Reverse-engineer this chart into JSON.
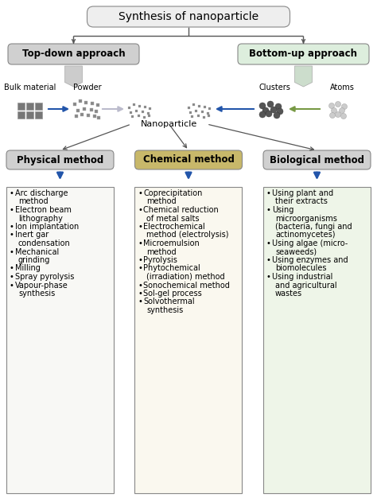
{
  "title": "Synthesis of nanoparticle",
  "top_down": "Top-down approach",
  "bottom_up": "Bottom-up approach",
  "nanoparticle_label": "Nanoparticle",
  "physical_method": "Physical method",
  "chemical_method": "Chemical method",
  "biological_method": "Biological method",
  "physical_items": [
    "Arc discharge\nmethod",
    "Electron beam\nlithography",
    "Ion implantation",
    "Inert gar\ncondensation",
    "Mechanical\ngrinding",
    "Milling",
    "Spray pyrolysis",
    "Vapour-phase\nsynthesis"
  ],
  "chemical_items": [
    "Coprecipitation\nmethod",
    "Chemical reduction\nof metal salts",
    "Electrochemical\nmethod (electrolysis)",
    "Microemulsion\nmethod",
    "Pyrolysis",
    "Phytochemical\n(irradiation) method",
    "Sonochemical method",
    "Sol-gel process",
    "Solvothermal\nsynthesis"
  ],
  "biological_items": [
    "Using plant and\ntheir extracts",
    "Using\nmicroorganisms\n(bacteria, fungi and\nactinomycetes)",
    "Using algae (micro-\nseaweeds)",
    "Using enzymes and\nbiomolecules",
    "Using industrial\nand agricultural\nwastes"
  ],
  "bulk_label": "Bulk material",
  "powder_label": "Powder",
  "clusters_label": "Clusters",
  "atoms_label": "Atoms",
  "bg_color": "#ffffff",
  "title_box_color": "#eeeeee",
  "title_box_edge": "#888888",
  "top_down_color": "#d0d0d0",
  "top_down_edge": "#888888",
  "bottom_up_color": "#ddeedd",
  "bottom_up_edge": "#888888",
  "physical_header_color": "#d0d0d0",
  "physical_header_edge": "#888888",
  "chemical_header_color": "#c8b86a",
  "chemical_header_edge": "#888888",
  "biological_header_color": "#d0d0d0",
  "biological_header_edge": "#888888",
  "physical_box_color": "#f8f8f5",
  "chemical_box_color": "#faf8ef",
  "biological_box_color": "#eef5e8",
  "arrow_blue": "#2255aa",
  "arrow_gray_light": "#aaaacc",
  "arrow_green": "#779944",
  "line_color": "#555555",
  "font_size_title": 10,
  "font_size_header": 8.5,
  "font_size_items": 7,
  "font_size_labels": 7.5
}
